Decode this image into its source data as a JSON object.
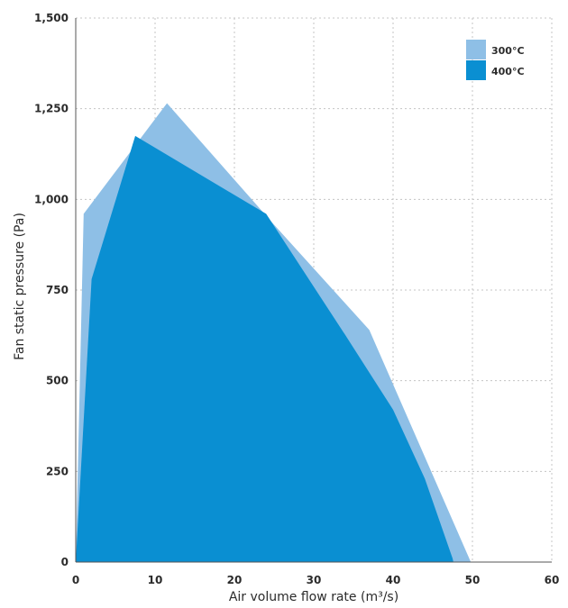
{
  "chart_data": {
    "type": "area",
    "xlabel": "Air volume flow rate (m³/s)",
    "ylabel": "Fan static pressure (Pa)",
    "xlim": [
      0,
      60
    ],
    "ylim": [
      0,
      1500
    ],
    "xticks": [
      "0",
      "10",
      "20",
      "30",
      "40",
      "50",
      "60"
    ],
    "yticks": [
      "0",
      "250",
      "500",
      "750",
      "1,000",
      "1,250",
      "1,500"
    ],
    "grid": true,
    "legend_position": "top-right",
    "series": [
      {
        "name": "300°C",
        "color": "#8ebfe6",
        "x": [
          0,
          1,
          11.5,
          25,
          37,
          43,
          49.5,
          49.8
        ],
        "y": [
          0,
          960,
          1265,
          930,
          640,
          340,
          15,
          0
        ]
      },
      {
        "name": "400°C",
        "color": "#0a8fd2",
        "x": [
          0,
          2,
          7.5,
          24,
          34,
          40,
          44,
          47.5,
          47.6
        ],
        "y": [
          0,
          780,
          1175,
          960,
          625,
          420,
          230,
          10,
          0
        ]
      }
    ]
  }
}
